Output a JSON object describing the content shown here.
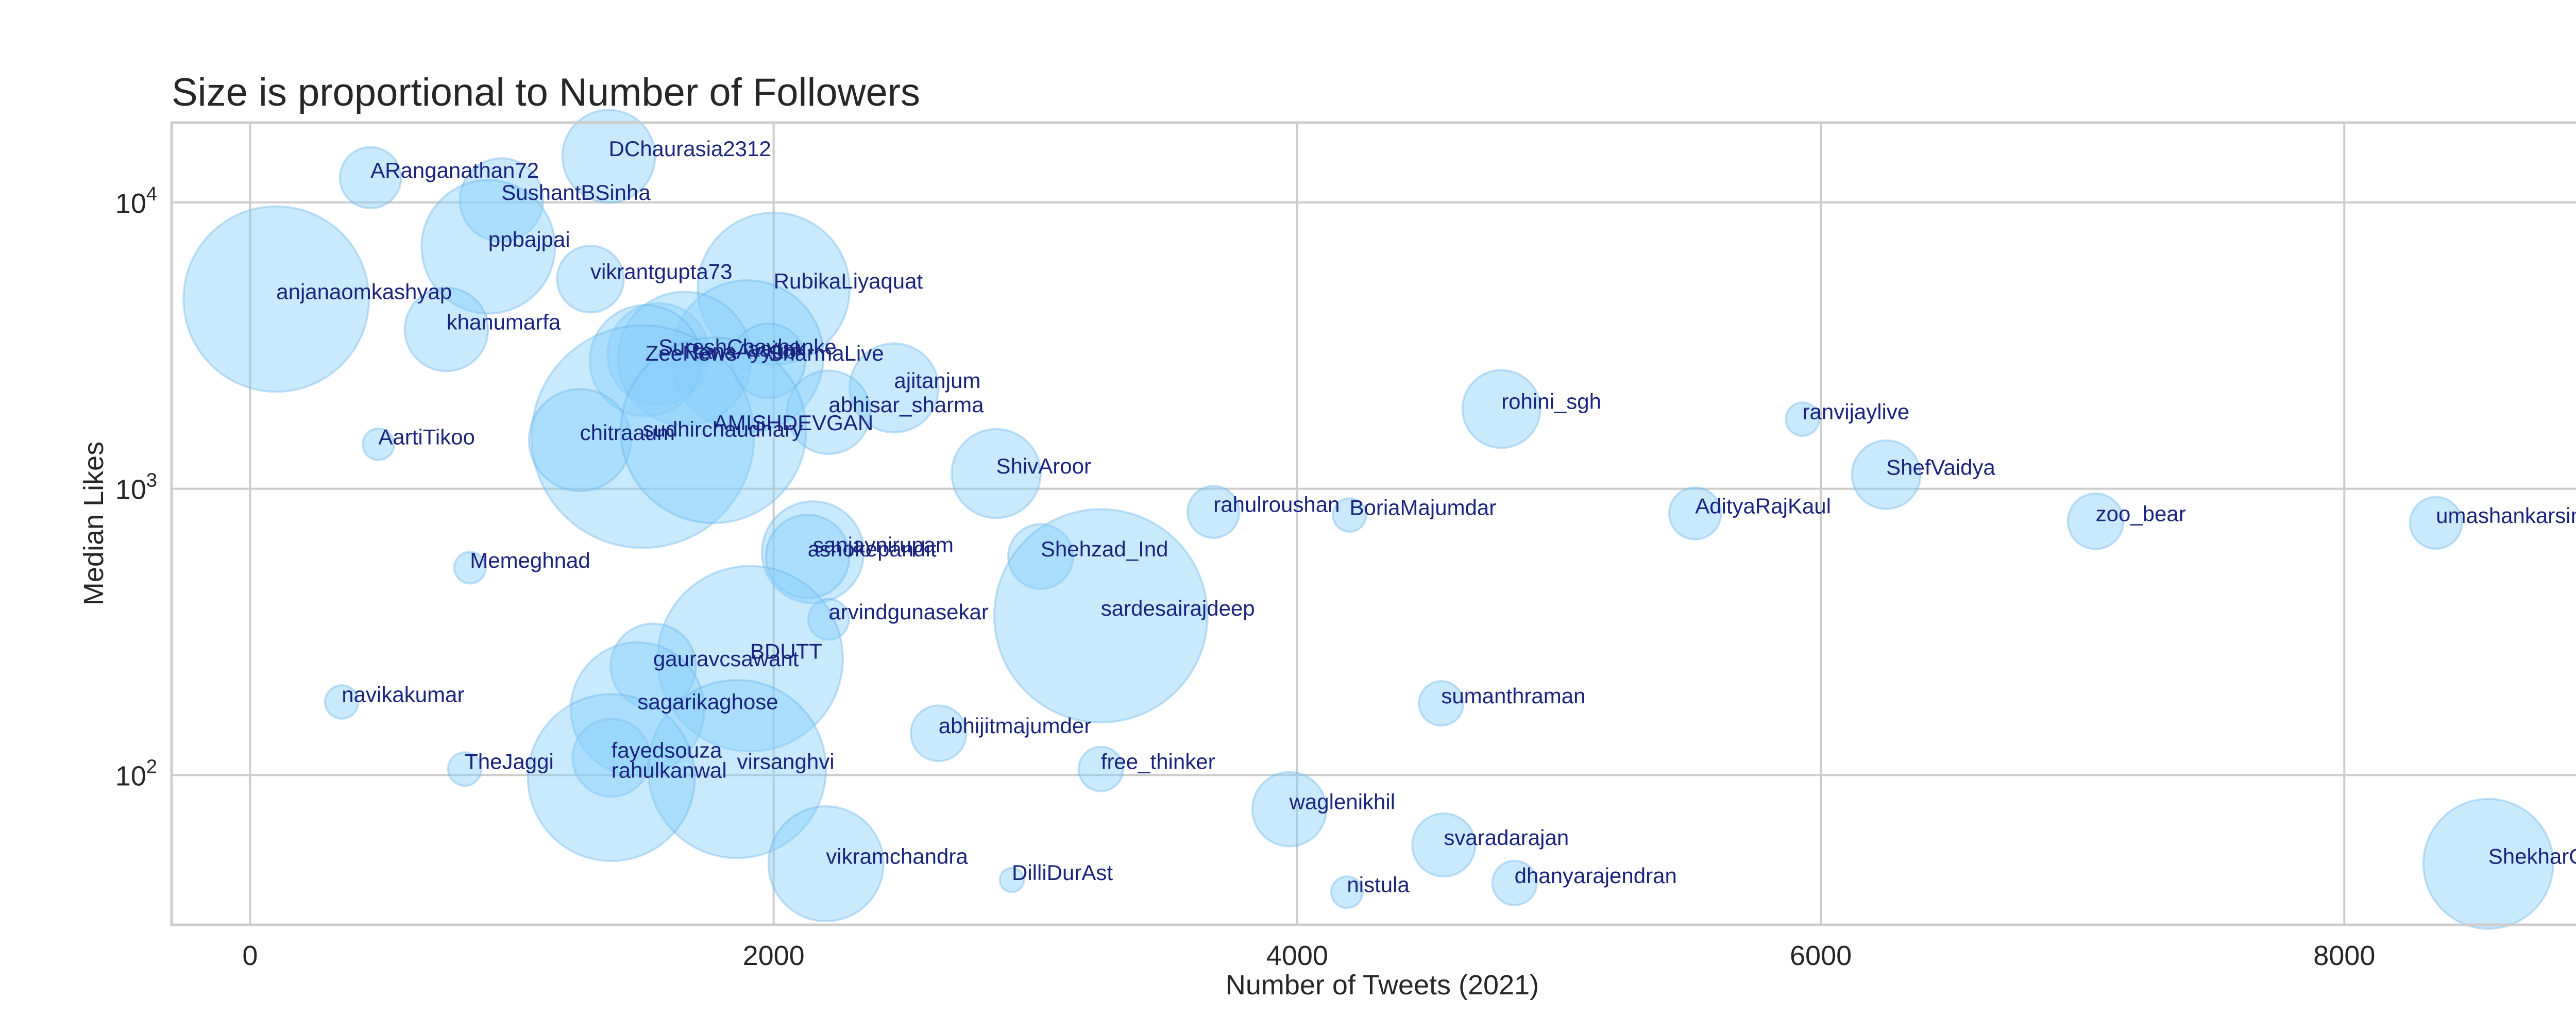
{
  "chart_data": {
    "type": "scatter",
    "title": "Size is proportional to Number of Followers",
    "xlabel": "Number of Tweets (2021)",
    "ylabel": "Median Likes",
    "xscale": "linear",
    "yscale": "log",
    "xlim": [
      -300,
      8950
    ],
    "ylim": [
      30,
      19000
    ],
    "xticks": [
      0,
      2000,
      4000,
      6000,
      8000
    ],
    "xtick_labels": [
      "0",
      "2000",
      "4000",
      "6000",
      "8000"
    ],
    "yticks": [
      100,
      1000,
      10000
    ],
    "ytick_labels": [
      {
        "base": "10",
        "exp": "2"
      },
      {
        "base": "10",
        "exp": "3"
      },
      {
        "base": "10",
        "exp": "4"
      }
    ],
    "grid": true,
    "marker_color": "#87CEFA",
    "marker_edge_color": "#5fb0e6",
    "label_color": "#1a237e",
    "size_encodes": "Number of Followers (relative)",
    "points": [
      {
        "name": "DChaurasia2312",
        "x": 1370,
        "y": 14500,
        "size": 0.5
      },
      {
        "name": "ARanganathan72",
        "x": 460,
        "y": 12200,
        "size": 0.33
      },
      {
        "name": "SushantBSinha",
        "x": 960,
        "y": 10200,
        "size": 0.45
      },
      {
        "name": "ppbajpai",
        "x": 910,
        "y": 7000,
        "size": 0.72
      },
      {
        "name": "anjanaomkashyap",
        "x": 100,
        "y": 4600,
        "size": 1.0
      },
      {
        "name": "vikrantgupta73",
        "x": 1300,
        "y": 5400,
        "size": 0.36
      },
      {
        "name": "RubikaLiyaquat",
        "x": 2000,
        "y": 5000,
        "size": 0.82
      },
      {
        "name": "khanumarfa",
        "x": 750,
        "y": 3600,
        "size": 0.45
      },
      {
        "name": "SureshChavhanke",
        "x": 1560,
        "y": 2950,
        "size": 0.55
      },
      {
        "name": "aajtak",
        "x": 1900,
        "y": 2900,
        "size": 0.82
      },
      {
        "name": "RanaAyyub",
        "x": 1660,
        "y": 2850,
        "size": 0.72
      },
      {
        "name": "ZeeNews",
        "x": 1510,
        "y": 2800,
        "size": 0.6
      },
      {
        "name": "SharmaLive",
        "x": 1980,
        "y": 2800,
        "size": 0.4
      },
      {
        "name": "ajitanjum",
        "x": 2460,
        "y": 2250,
        "size": 0.48
      },
      {
        "name": "abhisar_sharma",
        "x": 2210,
        "y": 1850,
        "size": 0.45
      },
      {
        "name": "sudhirchaudhary",
        "x": 1500,
        "y": 1520,
        "size": 1.2
      },
      {
        "name": "chitraaum",
        "x": 1260,
        "y": 1480,
        "size": 0.55
      },
      {
        "name": "AMISHDEVGAN",
        "x": 1770,
        "y": 1600,
        "size": 1.0
      },
      {
        "name": "AartiTikoo",
        "x": 490,
        "y": 1430,
        "size": 0.17
      },
      {
        "name": "rohini_sgh",
        "x": 4780,
        "y": 1900,
        "size": 0.42
      },
      {
        "name": "ranvijaylive",
        "x": 5930,
        "y": 1750,
        "size": 0.18
      },
      {
        "name": "ShivAroor",
        "x": 2850,
        "y": 1130,
        "size": 0.48
      },
      {
        "name": "ShefVaidya",
        "x": 6250,
        "y": 1120,
        "size": 0.37
      },
      {
        "name": "rahulroushan",
        "x": 3680,
        "y": 830,
        "size": 0.28
      },
      {
        "name": "BoriaMajumdar",
        "x": 4200,
        "y": 810,
        "size": 0.18
      },
      {
        "name": "AdityaRajKaul",
        "x": 5520,
        "y": 820,
        "size": 0.28
      },
      {
        "name": "zoo_bear",
        "x": 7050,
        "y": 770,
        "size": 0.3
      },
      {
        "name": "umashankarsingh",
        "x": 8350,
        "y": 760,
        "size": 0.28
      },
      {
        "name": "Memeghnad",
        "x": 840,
        "y": 530,
        "size": 0.17
      },
      {
        "name": "sanjaynirupam",
        "x": 2150,
        "y": 600,
        "size": 0.55
      },
      {
        "name": "ashokepandit",
        "x": 2130,
        "y": 580,
        "size": 0.45
      },
      {
        "name": "Shehzad_Ind",
        "x": 3020,
        "y": 580,
        "size": 0.35
      },
      {
        "name": "sardesairajdeep",
        "x": 3250,
        "y": 360,
        "size": 1.15
      },
      {
        "name": "arvindgunasekar",
        "x": 2210,
        "y": 350,
        "size": 0.22
      },
      {
        "name": "BDUTT",
        "x": 1910,
        "y": 255,
        "size": 1.0
      },
      {
        "name": "gauravcsawant",
        "x": 1540,
        "y": 240,
        "size": 0.46
      },
      {
        "name": "navikakumar",
        "x": 350,
        "y": 180,
        "size": 0.18
      },
      {
        "name": "sagarikaghose",
        "x": 1480,
        "y": 170,
        "size": 0.72
      },
      {
        "name": "sumanthraman",
        "x": 4550,
        "y": 178,
        "size": 0.24
      },
      {
        "name": "abhijitmajumder",
        "x": 2630,
        "y": 140,
        "size": 0.3
      },
      {
        "name": "TheJaggi",
        "x": 820,
        "y": 105,
        "size": 0.18
      },
      {
        "name": "fayedsouza",
        "x": 1380,
        "y": 115,
        "size": 0.42
      },
      {
        "name": "virsanghvi",
        "x": 1860,
        "y": 105,
        "size": 0.96
      },
      {
        "name": "rahulkanwal",
        "x": 1380,
        "y": 98,
        "size": 0.9
      },
      {
        "name": "free_thinker",
        "x": 3250,
        "y": 105,
        "size": 0.24
      },
      {
        "name": "waglenikhil",
        "x": 3970,
        "y": 76,
        "size": 0.4
      },
      {
        "name": "svaradarajan",
        "x": 4560,
        "y": 57,
        "size": 0.34
      },
      {
        "name": "vikramchandra",
        "x": 2200,
        "y": 49,
        "size": 0.62
      },
      {
        "name": "ShekharGupta",
        "x": 8550,
        "y": 49,
        "size": 0.7
      },
      {
        "name": "DilliDurAst",
        "x": 2910,
        "y": 43,
        "size": 0.13
      },
      {
        "name": "dhanyarajendran",
        "x": 4830,
        "y": 42,
        "size": 0.24
      },
      {
        "name": "nistula",
        "x": 4190,
        "y": 39,
        "size": 0.17
      }
    ]
  }
}
